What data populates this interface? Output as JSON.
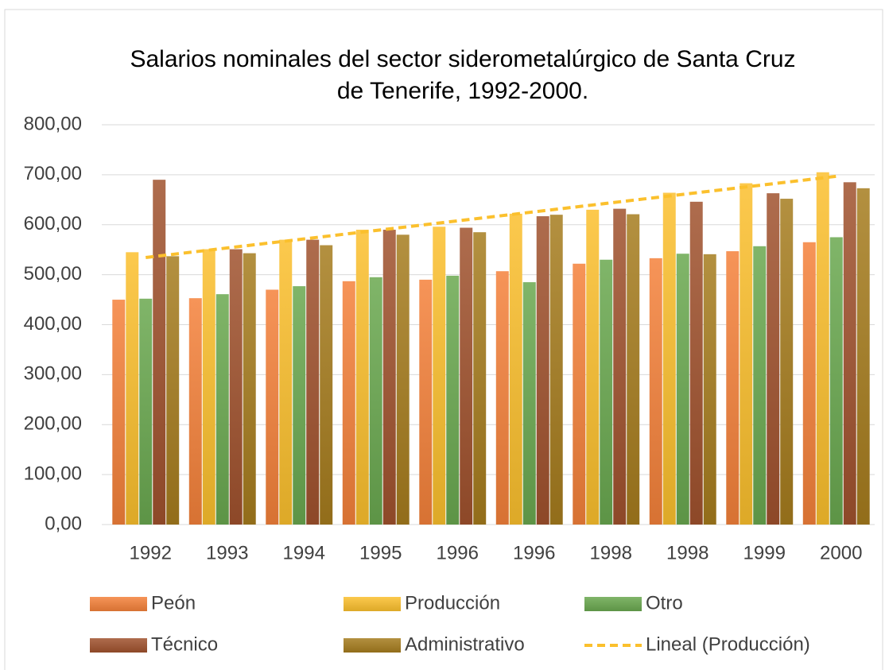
{
  "chart_data": {
    "type": "bar",
    "title": [
      "Salarios nominales del sector siderometalúrgico de Santa Cruz",
      "de Tenerife, 1992-2000."
    ],
    "categories": [
      "1992",
      "1993",
      "1994",
      "1995",
      "1996",
      "1996",
      "1998",
      "1998",
      "1999",
      "2000"
    ],
    "series": [
      {
        "name": "Peón",
        "color": "#f4813a",
        "values": [
          450,
          453,
          470,
          487,
          490,
          507,
          522,
          533,
          547,
          565
        ]
      },
      {
        "name": "Producción",
        "color": "#fbc02d",
        "values": [
          545,
          551,
          570,
          590,
          596,
          622,
          630,
          664,
          683,
          705
        ]
      },
      {
        "name": "Otro",
        "color": "#6aa84f",
        "values": [
          452,
          461,
          477,
          495,
          498,
          485,
          530,
          542,
          557,
          575
        ]
      },
      {
        "name": "Técnico",
        "color": "#a0522d",
        "values": [
          690,
          551,
          570,
          590,
          594,
          617,
          632,
          646,
          663,
          685
        ]
      },
      {
        "name": "Administrativo",
        "color": "#a67c1e",
        "values": [
          537,
          543,
          559,
          580,
          585,
          620,
          621,
          541,
          652,
          673
        ]
      }
    ],
    "trendline": {
      "series": 1,
      "name": "Lineal (Producción)",
      "color": "#fbc02d"
    },
    "ylim": [
      0,
      800
    ],
    "yticks": [
      {
        "value": 0,
        "label": "0,00"
      },
      {
        "value": 100,
        "label": "100,00"
      },
      {
        "value": 200,
        "label": "200,00"
      },
      {
        "value": 300,
        "label": "300,00"
      },
      {
        "value": 400,
        "label": "400,00"
      },
      {
        "value": 500,
        "label": "500,00"
      },
      {
        "value": 600,
        "label": "600,00"
      },
      {
        "value": 700,
        "label": "700,00"
      },
      {
        "value": 800,
        "label": "800,00"
      }
    ],
    "grid": true
  }
}
